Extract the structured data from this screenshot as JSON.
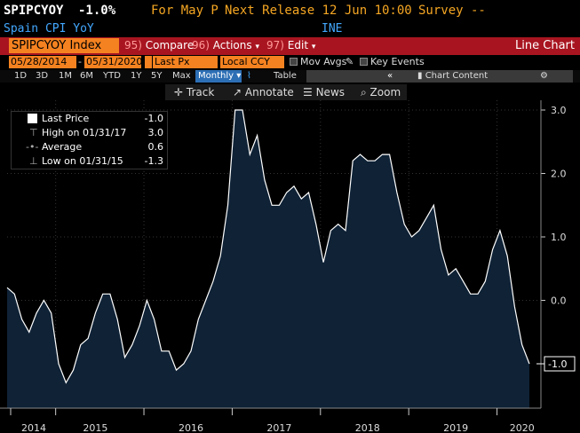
{
  "header": {
    "ticker": "SPIPCYOY",
    "last_value": "-1.0%",
    "for_label": "For May P",
    "next_release": "Next Release 12 Jun 10:00",
    "survey": "Survey --",
    "security_name": "Spain CPI YoY",
    "source": "INE"
  },
  "command_bar": {
    "ticker_field": "SPIPCYOY Index",
    "compare_num": "95)",
    "compare_label": "Compare",
    "actions_num": "96)",
    "actions_label": "Actions",
    "edit_num": "97)",
    "edit_label": "Edit",
    "view_label": "Line Chart"
  },
  "range_bar": {
    "start_date": "05/28/2014",
    "end_date": "05/31/2020",
    "field": "Last Px",
    "currency": "Local CCY",
    "mov_avgs": "Mov Avgs",
    "key_events": "Key Events"
  },
  "period_bar": {
    "periods": [
      "1D",
      "3D",
      "1M",
      "6M",
      "YTD",
      "1Y",
      "5Y",
      "Max"
    ],
    "frequency": "Monthly",
    "table_label": "Table",
    "chart_content": "Chart Content"
  },
  "tool_bar": {
    "track": "Track",
    "annotate": "Annotate",
    "news": "News",
    "zoom": "Zoom"
  },
  "legend": {
    "items": [
      {
        "label": "Last Price",
        "value": "-1.0"
      },
      {
        "label": "High on 01/31/17",
        "value": "3.0"
      },
      {
        "label": "Average",
        "value": "0.6"
      },
      {
        "label": "Low on 01/31/15",
        "value": "-1.3"
      }
    ]
  },
  "colors": {
    "orange": "#f5a623",
    "accent_blue": "#43a8ff",
    "command_bar_red": "#a81520",
    "area_fill": "#0f2236",
    "line": "#ffffff"
  },
  "chart_data": {
    "type": "area",
    "x_labels": [
      "2014",
      "2015",
      "2016",
      "2017",
      "2018",
      "2019",
      "2020"
    ],
    "ylim": [
      -1.75,
      3.2
    ],
    "y_ticks": [
      "3.0",
      "2.0",
      "1.0",
      "0.0"
    ],
    "last_value_label": "-1.0",
    "grid": true,
    "series": [
      {
        "values": [
          0.2,
          0.1,
          -0.3,
          -0.5,
          -0.2,
          0.0,
          -0.2,
          -1.0,
          -1.3,
          -1.1,
          -0.7,
          -0.6,
          -0.2,
          0.1,
          0.1,
          -0.3,
          -0.9,
          -0.7,
          -0.4,
          0.0,
          -0.3,
          -0.8,
          -0.8,
          -1.1,
          -1.0,
          -0.8,
          -0.3,
          0.0,
          0.3,
          0.7,
          1.5,
          3.0,
          3.0,
          2.3,
          2.6,
          1.9,
          1.5,
          1.5,
          1.7,
          1.8,
          1.6,
          1.7,
          1.2,
          0.6,
          1.1,
          1.2,
          1.1,
          2.2,
          2.3,
          2.2,
          2.2,
          2.3,
          2.3,
          1.7,
          1.2,
          1.0,
          1.1,
          1.3,
          1.5,
          0.8,
          0.4,
          0.5,
          0.3,
          0.1,
          0.1,
          0.3,
          0.8,
          1.1,
          0.7,
          -0.1,
          -0.7,
          -1.0
        ]
      }
    ]
  }
}
